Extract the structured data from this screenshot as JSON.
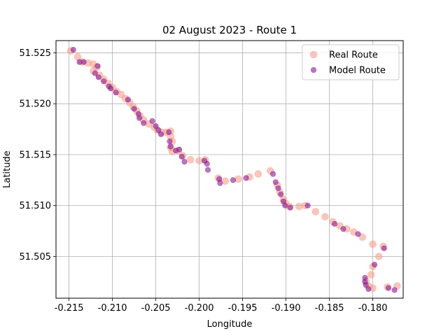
{
  "chart_data": {
    "type": "scatter",
    "title": "02 August 2023 - Route 1",
    "xlabel": "Longitude",
    "ylabel": "Latitude",
    "xlim": [
      -0.2165,
      -0.1765
    ],
    "ylim": [
      51.5009,
      51.5262
    ],
    "xticks": [
      -0.215,
      -0.21,
      -0.205,
      -0.2,
      -0.195,
      -0.19,
      -0.185,
      -0.18
    ],
    "xtick_labels": [
      "-0.215",
      "-0.210",
      "-0.205",
      "-0.200",
      "-0.195",
      "-0.190",
      "-0.185",
      "-0.180"
    ],
    "yticks": [
      51.505,
      51.51,
      51.515,
      51.52,
      51.525
    ],
    "ytick_labels": [
      "51.505",
      "51.510",
      "51.515",
      "51.520",
      "51.525"
    ],
    "grid": true,
    "legend_position": "top-right",
    "series": [
      {
        "name": "Real Route",
        "color": "#f4a08f",
        "opacity": 0.6,
        "marker_size": "large",
        "points": [
          [
            -0.2148,
            51.5252
          ],
          [
            -0.214,
            51.5246
          ],
          [
            -0.2135,
            51.5241
          ],
          [
            -0.2128,
            51.524
          ],
          [
            -0.2122,
            51.5239
          ],
          [
            -0.2118,
            51.5236
          ],
          [
            -0.2122,
            51.5232
          ],
          [
            -0.2115,
            51.5228
          ],
          [
            -0.211,
            51.5224
          ],
          [
            -0.2105,
            51.522
          ],
          [
            -0.21,
            51.5216
          ],
          [
            -0.2095,
            51.5212
          ],
          [
            -0.209,
            51.5209
          ],
          [
            -0.2085,
            51.5205
          ],
          [
            -0.208,
            51.5201
          ],
          [
            -0.2076,
            51.5197
          ],
          [
            -0.2072,
            51.5193
          ],
          [
            -0.2068,
            51.5188
          ],
          [
            -0.2064,
            51.5184
          ],
          [
            -0.2058,
            51.518
          ],
          [
            -0.2052,
            51.5177
          ],
          [
            -0.2048,
            51.5174
          ],
          [
            -0.2043,
            51.5172
          ],
          [
            -0.2038,
            51.5172
          ],
          [
            -0.2033,
            51.5173
          ],
          [
            -0.2033,
            51.5168
          ],
          [
            -0.2031,
            51.5163
          ],
          [
            -0.2033,
            51.5157
          ],
          [
            -0.2031,
            51.5153
          ],
          [
            -0.2024,
            51.5154
          ],
          [
            -0.2019,
            51.5149
          ],
          [
            -0.201,
            51.5145
          ],
          [
            -0.2,
            51.5144
          ],
          [
            -0.1993,
            51.5145
          ],
          [
            -0.1978,
            51.5127
          ],
          [
            -0.197,
            51.5124
          ],
          [
            -0.1955,
            51.5126
          ],
          [
            -0.1942,
            51.5128
          ],
          [
            -0.1932,
            51.5131
          ],
          [
            -0.1918,
            51.5134
          ],
          [
            -0.191,
            51.512
          ],
          [
            -0.1907,
            51.5113
          ],
          [
            -0.1903,
            51.5106
          ],
          [
            -0.19,
            51.5102
          ],
          [
            -0.1896,
            51.5099
          ],
          [
            -0.1885,
            51.5099
          ],
          [
            -0.1878,
            51.51
          ],
          [
            -0.1866,
            51.5094
          ],
          [
            -0.1855,
            51.5089
          ],
          [
            -0.1846,
            51.5084
          ],
          [
            -0.1838,
            51.508
          ],
          [
            -0.183,
            51.5077
          ],
          [
            -0.1822,
            51.5074
          ],
          [
            -0.1812,
            51.5069
          ],
          [
            -0.18,
            51.5062
          ],
          [
            -0.1788,
            51.506
          ],
          [
            -0.1793,
            51.505
          ],
          [
            -0.18,
            51.504
          ],
          [
            -0.1802,
            51.5032
          ],
          [
            -0.1808,
            51.5026
          ],
          [
            -0.1805,
            51.5021
          ],
          [
            -0.18,
            51.5019
          ],
          [
            -0.1783,
            51.502
          ],
          [
            -0.1772,
            51.5021
          ]
        ]
      },
      {
        "name": "Model Route",
        "color": "#8b1a96",
        "opacity": 0.6,
        "marker_size": "small",
        "points": [
          [
            -0.2145,
            51.5253
          ],
          [
            -0.2138,
            51.5241
          ],
          [
            -0.2133,
            51.5241
          ],
          [
            -0.2117,
            51.5237
          ],
          [
            -0.212,
            51.523
          ],
          [
            -0.2116,
            51.5226
          ],
          [
            -0.211,
            51.5222
          ],
          [
            -0.2104,
            51.5217
          ],
          [
            -0.2102,
            51.5215
          ],
          [
            -0.2096,
            51.5211
          ],
          [
            -0.2082,
            51.5204
          ],
          [
            -0.2075,
            51.5195
          ],
          [
            -0.207,
            51.519
          ],
          [
            -0.2069,
            51.5186
          ],
          [
            -0.2064,
            51.5181
          ],
          [
            -0.2054,
            51.5183
          ],
          [
            -0.205,
            51.5178
          ],
          [
            -0.2047,
            51.5174
          ],
          [
            -0.2044,
            51.517
          ],
          [
            -0.2035,
            51.5172
          ],
          [
            -0.2034,
            51.5163
          ],
          [
            -0.2033,
            51.5158
          ],
          [
            -0.2027,
            51.5154
          ],
          [
            -0.2023,
            51.5155
          ],
          [
            -0.202,
            51.5148
          ],
          [
            -0.2017,
            51.5143
          ],
          [
            -0.1994,
            51.5144
          ],
          [
            -0.1991,
            51.5141
          ],
          [
            -0.199,
            51.5135
          ],
          [
            -0.1977,
            51.5126
          ],
          [
            -0.1976,
            51.5122
          ],
          [
            -0.1961,
            51.5125
          ],
          [
            -0.1946,
            51.5127
          ],
          [
            -0.1915,
            51.5131
          ],
          [
            -0.1912,
            51.5123
          ],
          [
            -0.1909,
            51.5117
          ],
          [
            -0.1906,
            51.5111
          ],
          [
            -0.1903,
            51.5104
          ],
          [
            -0.1901,
            51.51
          ],
          [
            -0.1895,
            51.5098
          ],
          [
            -0.1875,
            51.51
          ],
          [
            -0.1844,
            51.5082
          ],
          [
            -0.1834,
            51.5077
          ],
          [
            -0.1817,
            51.5072
          ],
          [
            -0.1787,
            51.5058
          ],
          [
            -0.1798,
            51.5042
          ],
          [
            -0.1809,
            51.5029
          ],
          [
            -0.1809,
            51.5025
          ],
          [
            -0.1808,
            51.5022
          ],
          [
            -0.1805,
            51.5018
          ],
          [
            -0.1782,
            51.5019
          ],
          [
            -0.1775,
            51.5017
          ]
        ]
      }
    ]
  }
}
